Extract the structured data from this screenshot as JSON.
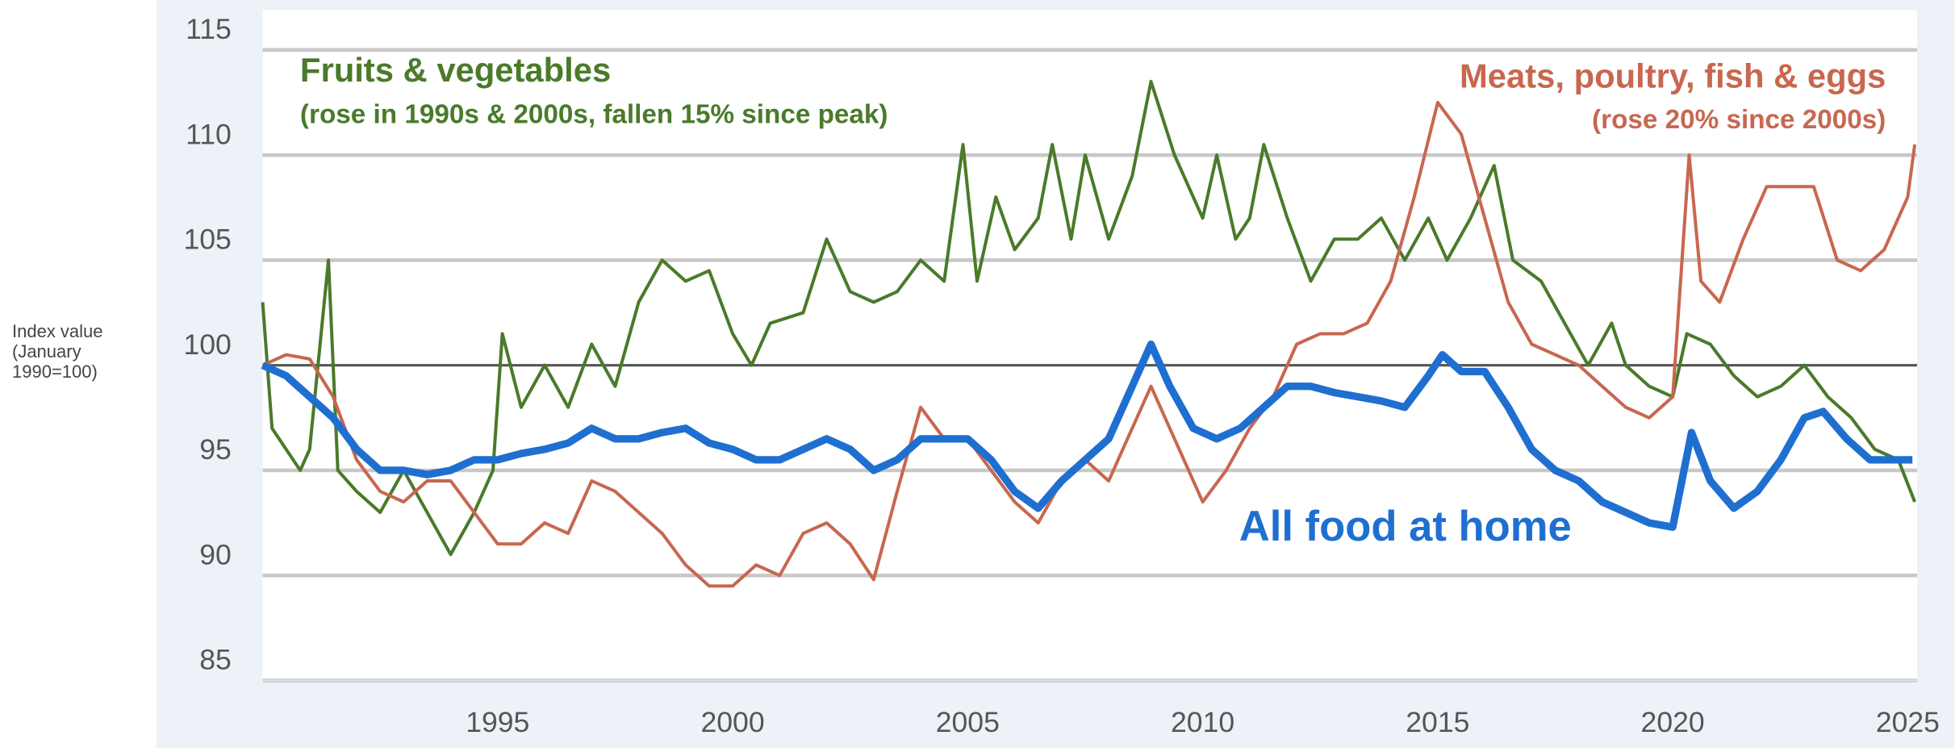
{
  "chart_data": {
    "type": "line",
    "y_label": "Index value (January 1990=100)",
    "annotations": [
      {
        "text": "Fruits & vegetables",
        "color": "#4a7a2a"
      },
      {
        "text": "(rose in 1990s & 2000s, fallen 15% since peak)",
        "color": "#4a7a2a"
      },
      {
        "text": "Meats, poultry, fish & eggs",
        "color": "#c8674f"
      },
      {
        "text": "(rose 20% since 2000s)",
        "color": "#c8674f"
      },
      {
        "text": "All food at home",
        "color": "#1f6fd1"
      }
    ],
    "xlim": [
      1990,
      2025.2
    ],
    "xticks": [
      1995,
      2000,
      2005,
      2010,
      2015,
      2020,
      2025
    ],
    "ylim": [
      85,
      116.9
    ],
    "yticks": [
      85,
      90,
      95,
      100,
      105,
      110,
      115
    ],
    "reference_line": 100,
    "grid": true,
    "series": [
      {
        "name": "Fruits & vegetables",
        "color": "#4a7a2a",
        "x": [
          1990,
          1990.2,
          1990.5,
          1990.8,
          1991,
          1991.4,
          1991.6,
          1992,
          1992.5,
          1993,
          1993.5,
          1994,
          1994.5,
          1994.9,
          1995.1,
          1995.5,
          1996,
          1996.5,
          1997,
          1997.5,
          1998,
          1998.5,
          1999,
          1999.5,
          2000,
          2000.4,
          2000.8,
          2001.5,
          2002,
          2002.5,
          2003,
          2003.5,
          2004,
          2004.5,
          2004.9,
          2005.2,
          2005.6,
          2006,
          2006.5,
          2006.8,
          2007.2,
          2007.5,
          2008,
          2008.5,
          2008.9,
          2009.4,
          2010,
          2010.3,
          2010.7,
          2011,
          2011.3,
          2011.8,
          2012.3,
          2012.8,
          2013.3,
          2013.8,
          2014.3,
          2014.8,
          2015.2,
          2015.7,
          2016.2,
          2016.6,
          2017.2,
          2017.7,
          2018.2,
          2018.7,
          2019,
          2019.5,
          2020,
          2020.3,
          2020.8,
          2021.3,
          2021.8,
          2022.3,
          2022.8,
          2023.3,
          2023.8,
          2024.3,
          2024.8,
          2025.15
        ],
        "values": [
          103,
          97,
          96,
          95,
          96,
          105,
          95,
          94,
          93,
          95,
          93,
          91,
          93,
          95,
          101.5,
          98,
          100,
          98,
          101,
          99,
          103,
          105,
          104,
          104.5,
          101.5,
          100,
          102,
          102.5,
          106,
          103.5,
          103,
          103.5,
          105,
          104,
          110.5,
          104,
          108,
          105.5,
          107,
          110.5,
          106,
          110,
          106,
          109,
          113.5,
          110,
          107,
          110,
          106,
          107,
          110.5,
          107,
          104,
          106,
          106,
          107,
          105,
          107,
          105,
          107,
          109.5,
          105,
          104,
          102,
          100,
          102,
          100,
          99,
          98.5,
          101.5,
          101,
          99.5,
          98.5,
          99,
          100,
          98.5,
          97.5,
          96,
          95.5,
          93.5
        ]
      },
      {
        "name": "Meats, poultry, fish & eggs",
        "color": "#c8674f",
        "x": [
          1990,
          1990.5,
          1991,
          1991.5,
          1992,
          1992.5,
          1993,
          1993.5,
          1994,
          1994.5,
          1995,
          1995.5,
          1996,
          1996.5,
          1997,
          1997.5,
          1998,
          1998.5,
          1999,
          1999.5,
          2000,
          2000.5,
          2001,
          2001.5,
          2002,
          2002.5,
          2003,
          2003.5,
          2004,
          2004.5,
          2005,
          2005.5,
          2006,
          2006.5,
          2007,
          2007.5,
          2008,
          2008.5,
          2008.9,
          2009.5,
          2010,
          2010.5,
          2011,
          2011.5,
          2012,
          2012.5,
          2013,
          2013.5,
          2014,
          2014.5,
          2015,
          2015.5,
          2016,
          2016.5,
          2017,
          2017.5,
          2018,
          2018.5,
          2019,
          2019.5,
          2020,
          2020.35,
          2020.6,
          2021,
          2021.5,
          2022,
          2022.5,
          2023,
          2023.5,
          2024,
          2024.5,
          2025,
          2025.15
        ],
        "values": [
          100,
          100.5,
          100.3,
          98.5,
          95.5,
          94,
          93.5,
          94.5,
          94.5,
          93,
          91.5,
          91.5,
          92.5,
          92,
          94.5,
          94,
          93,
          92,
          90.5,
          89.5,
          89.5,
          90.5,
          90,
          92,
          92.5,
          91.5,
          89.8,
          94,
          98,
          96.5,
          96.5,
          95,
          93.5,
          92.5,
          94.5,
          95.5,
          94.5,
          97,
          99,
          96,
          93.5,
          95,
          97,
          98.5,
          101,
          101.5,
          101.5,
          102,
          104,
          108,
          112.5,
          111,
          107,
          103,
          101,
          100.5,
          100,
          99,
          98,
          97.5,
          98.5,
          110,
          104,
          103,
          106,
          108.5,
          108.5,
          108.5,
          105,
          104.5,
          105.5,
          108,
          110.5
        ]
      },
      {
        "name": "All food at home",
        "color": "#1f6fd1",
        "x": [
          1990,
          1990.5,
          1991,
          1991.5,
          1992,
          1992.5,
          1993,
          1993.5,
          1994,
          1994.5,
          1995,
          1995.5,
          1996,
          1996.5,
          1997,
          1997.5,
          1998,
          1998.5,
          1999,
          1999.5,
          2000,
          2000.5,
          2001,
          2001.5,
          2002,
          2002.5,
          2003,
          2003.5,
          2004,
          2004.5,
          2005,
          2005.5,
          2006,
          2006.5,
          2007,
          2007.5,
          2008,
          2008.5,
          2008.9,
          2009.3,
          2009.8,
          2010.3,
          2010.8,
          2011.3,
          2011.8,
          2012.3,
          2012.8,
          2013.3,
          2013.8,
          2014.3,
          2014.8,
          2015.1,
          2015.5,
          2016,
          2016.5,
          2017,
          2017.5,
          2018,
          2018.5,
          2019,
          2019.5,
          2020,
          2020.4,
          2020.8,
          2021.3,
          2021.8,
          2022.3,
          2022.8,
          2023.2,
          2023.7,
          2024.2,
          2024.7,
          2025.1
        ],
        "values": [
          100,
          99.5,
          98.5,
          97.5,
          96,
          95,
          95,
          94.8,
          95,
          95.5,
          95.5,
          95.8,
          96,
          96.3,
          97,
          96.5,
          96.5,
          96.8,
          97,
          96.3,
          96,
          95.5,
          95.5,
          96,
          96.5,
          96,
          95,
          95.5,
          96.5,
          96.5,
          96.5,
          95.5,
          94,
          93.2,
          94.5,
          95.5,
          96.5,
          99,
          101,
          99,
          97,
          96.5,
          97,
          98,
          99,
          99,
          98.7,
          98.5,
          98.3,
          98,
          99.5,
          100.5,
          99.7,
          99.7,
          98,
          96,
          95,
          94.5,
          93.5,
          93,
          92.5,
          92.3,
          96.8,
          94.5,
          93.2,
          94,
          95.5,
          97.5,
          97.8,
          96.5,
          95.5,
          95.5,
          95.5
        ]
      }
    ]
  }
}
